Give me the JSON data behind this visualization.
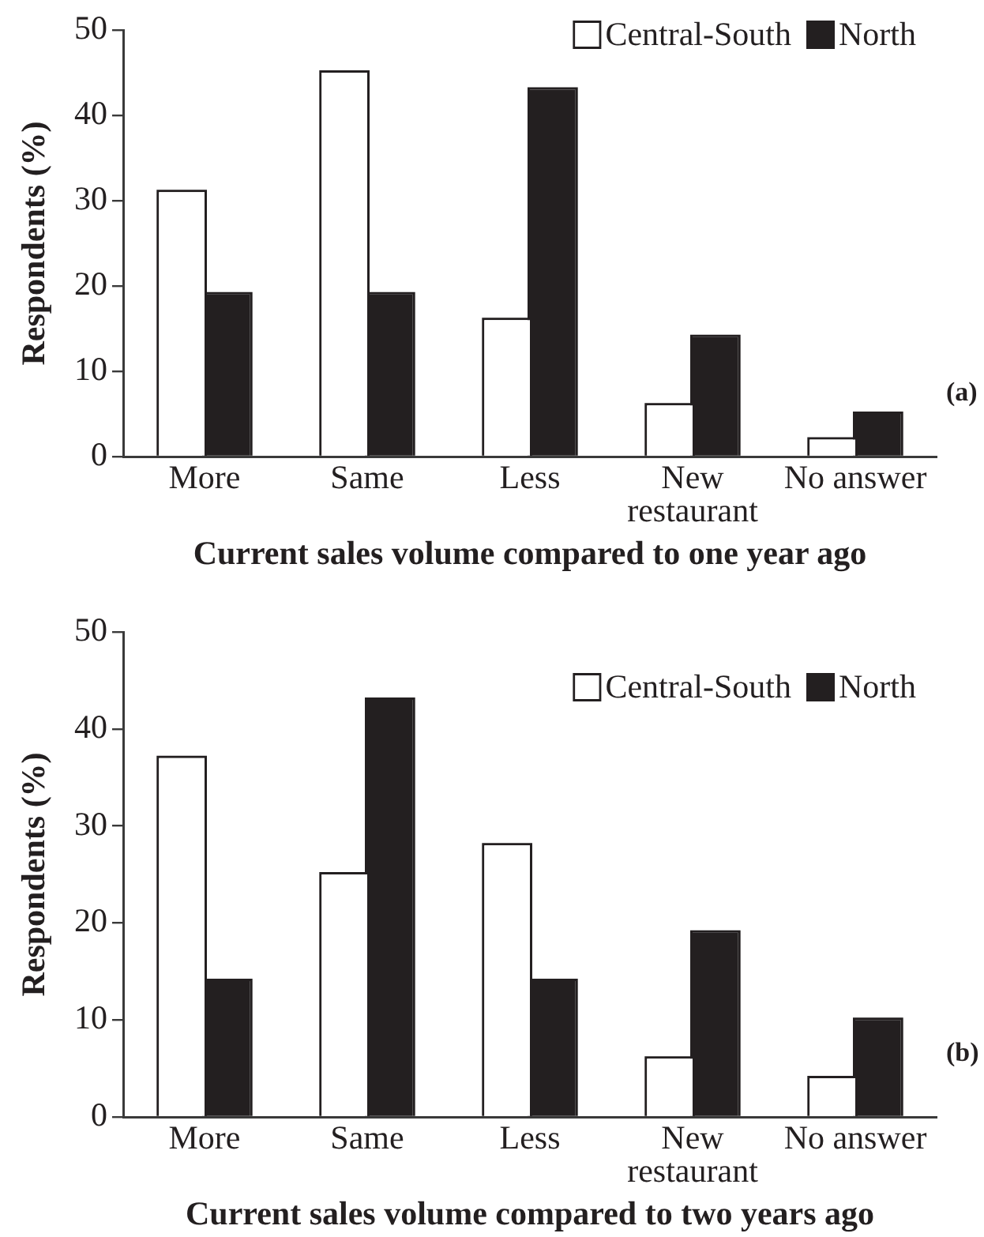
{
  "chart_data": [
    {
      "type": "bar",
      "xlabel": "Current sales volume compared to one year ago",
      "ylabel": "Respondents (%)",
      "categories": [
        "More",
        "Same",
        "Less",
        "New restaurant",
        "No answer"
      ],
      "series": [
        {
          "name": "Central-South",
          "color": "#ffffff",
          "values": [
            31,
            45,
            16,
            6,
            2
          ]
        },
        {
          "name": "North",
          "color": "#231f20",
          "values": [
            19,
            19,
            43,
            14,
            5
          ]
        }
      ],
      "ylim": [
        0,
        50
      ],
      "yticks": [
        0,
        10,
        20,
        30,
        40,
        50
      ],
      "legend": "top right",
      "annotations": [
        "(a)"
      ]
    },
    {
      "type": "bar",
      "xlabel": "Current sales volume compared to two years ago",
      "ylabel": "Respondents (%)",
      "categories": [
        "More",
        "Same",
        "Less",
        "New restaurant",
        "No answer"
      ],
      "series": [
        {
          "name": "Central-South",
          "color": "#ffffff",
          "values": [
            37,
            25,
            28,
            6,
            4
          ]
        },
        {
          "name": "North",
          "color": "#231f20",
          "values": [
            14,
            43,
            14,
            19,
            10
          ]
        }
      ],
      "ylim": [
        0,
        50
      ],
      "yticks": [
        0,
        10,
        20,
        30,
        40,
        50
      ],
      "legend": "top right",
      "annotations": [
        "(b)"
      ]
    }
  ]
}
